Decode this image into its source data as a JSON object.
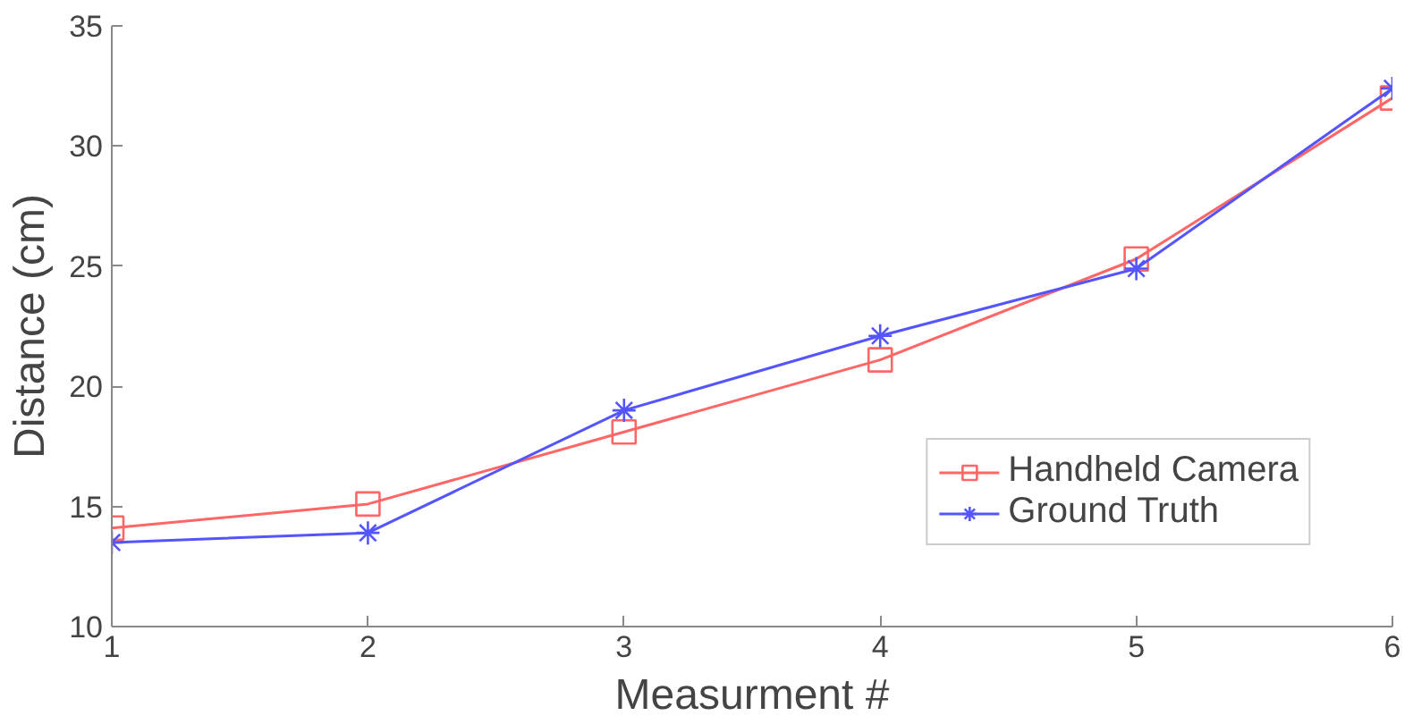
{
  "chart_data": {
    "type": "line",
    "xlabel": "Measurment #",
    "ylabel": "Distance (cm)",
    "x": [
      1,
      2,
      3,
      4,
      5,
      6
    ],
    "series": [
      {
        "name": "Handheld Camera",
        "color": "#ff6666",
        "marker": "square",
        "values": [
          14.1,
          15.1,
          18.1,
          21.1,
          25.3,
          32.0
        ]
      },
      {
        "name": "Ground Truth",
        "color": "#5555ff",
        "marker": "cross",
        "values": [
          13.5,
          13.9,
          19.0,
          22.1,
          24.9,
          32.4
        ]
      }
    ],
    "xlim": [
      1,
      6
    ],
    "xticks": [
      1,
      2,
      3,
      4,
      5,
      6
    ],
    "ylim": [
      10,
      35
    ],
    "yticks": [
      10,
      15,
      20,
      25,
      30,
      35
    ],
    "grid": false,
    "legend": "bottom right",
    "line_style": "solid"
  }
}
